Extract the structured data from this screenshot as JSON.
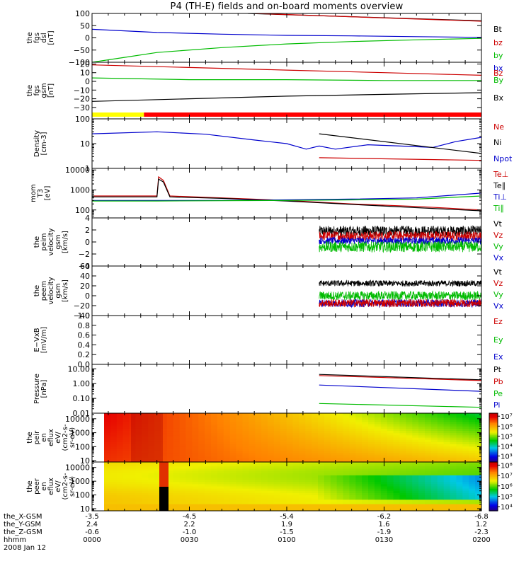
{
  "title": "P4 (TH-E) fields and on-board moments overview",
  "chart_data": {
    "type": "line",
    "time_axis": {
      "rows": [
        {
          "label": "the_X-GSM",
          "values": [
            "-3.5",
            "-4.5",
            "-5.4",
            "-6.2",
            "-6.8"
          ]
        },
        {
          "label": "the_Y-GSM",
          "values": [
            "2.4",
            "2.2",
            "1.9",
            "1.6",
            "1.2"
          ]
        },
        {
          "label": "the_Z-GSM",
          "values": [
            "-0.6",
            "-1.0",
            "-1.5",
            "-1.9",
            "-2.3"
          ]
        },
        {
          "label": "hhmm",
          "values": [
            "0000",
            "0030",
            "0100",
            "0130",
            "0200"
          ]
        }
      ],
      "date": "2008 Jan 12",
      "range_min": [
        0,
        120
      ]
    },
    "panels": [
      {
        "id": "fgs_dsl",
        "ylabel": [
          "the",
          "fgs",
          "dsl",
          "[nT]"
        ],
        "scale": "linear",
        "ylim": [
          -100,
          100
        ],
        "yticks": [
          "100",
          "50",
          "0",
          "−50",
          "−100"
        ],
        "ytick_values": [
          100,
          50,
          0,
          -50,
          -100
        ],
        "legend": [
          {
            "name": "Bt",
            "color": "#000000"
          },
          {
            "name": "bz",
            "color": "#cc0000"
          },
          {
            "name": "by",
            "color": "#00bb00"
          },
          {
            "name": "bx",
            "color": "#0000cc"
          }
        ],
        "series": [
          {
            "name": "Bt",
            "color": "#000000",
            "t": [
              48,
              120
            ],
            "y": [
              100,
              70
            ]
          },
          {
            "name": "bz",
            "color": "#cc0000",
            "t": [
              50,
              120
            ],
            "y": [
              100,
              68
            ]
          },
          {
            "name": "by",
            "color": "#00bb00",
            "t": [
              0,
              10,
              20,
              40,
              60,
              80,
              100,
              120
            ],
            "y": [
              -100,
              -80,
              -60,
              -40,
              -25,
              -15,
              -8,
              -2
            ]
          },
          {
            "name": "bx",
            "color": "#0000cc",
            "t": [
              0,
              20,
              40,
              60,
              80,
              100,
              120
            ],
            "y": [
              35,
              22,
              15,
              10,
              8,
              5,
              2
            ]
          }
        ]
      },
      {
        "id": "fgs_gsm",
        "ylabel": [
          "the",
          "fgs",
          "gsm",
          "[nT]"
        ],
        "scale": "linear",
        "ylim": [
          -35,
          22
        ],
        "yticks": [
          "20",
          "10",
          "0",
          "−10",
          "−20",
          "−30"
        ],
        "ytick_values": [
          20,
          10,
          0,
          -10,
          -20,
          -30
        ],
        "legend": [
          {
            "name": "Bz",
            "color": "#cc0000"
          },
          {
            "name": "By",
            "color": "#00bb00"
          },
          {
            "name": "Bx",
            "color": "#000000"
          }
        ],
        "series": [
          {
            "name": "Bz",
            "color": "#cc0000",
            "t": [
              0,
              30,
              60,
              90,
              120
            ],
            "y": [
              19,
              16,
              13,
              10,
              7
            ]
          },
          {
            "name": "By",
            "color": "#00bb00",
            "t": [
              0,
              30,
              60,
              90,
              120
            ],
            "y": [
              4,
              2,
              2,
              1,
              1
            ]
          },
          {
            "name": "Bx",
            "color": "#000000",
            "t": [
              0,
              30,
              60,
              90,
              120
            ],
            "y": [
              -23,
              -20,
              -17,
              -15,
              -13
            ]
          }
        ],
        "status_bar": [
          {
            "t_end": 16,
            "color": "#ffff00"
          },
          {
            "t_end": 120,
            "color": "#ff0000"
          }
        ]
      },
      {
        "id": "density",
        "ylabel": [
          "Density",
          "[cm-3]"
        ],
        "scale": "log",
        "ylim": [
          1,
          100
        ],
        "yticks": [
          "100",
          "10",
          "1"
        ],
        "ytick_values": [
          100,
          10,
          1
        ],
        "legend": [
          {
            "name": "Ne",
            "color": "#cc0000"
          },
          {
            "name": "Ni",
            "color": "#000000"
          },
          {
            "name": "Npot",
            "color": "#0000cc"
          }
        ],
        "series": [
          {
            "name": "Npot",
            "color": "#0000cc",
            "t": [
              0,
              20,
              35,
              50,
              60,
              66,
              70,
              75,
              85,
              95,
              105,
              112,
              120
            ],
            "y": [
              25,
              30,
              24,
              14,
              10,
              6,
              8,
              6,
              9,
              8,
              7,
              12,
              18
            ]
          },
          {
            "name": "Ni",
            "color": "#000000",
            "t": [
              70,
              120
            ],
            "y": [
              25,
              4
            ]
          },
          {
            "name": "Ne",
            "color": "#cc0000",
            "t": [
              70,
              120
            ],
            "y": [
              2.7,
              2.1
            ]
          }
        ]
      },
      {
        "id": "mom_temp",
        "ylabel": [
          "mom",
          "T3",
          "[eV]"
        ],
        "scale": "log",
        "ylim": [
          40,
          12000
        ],
        "yticks": [
          "10000",
          "1000",
          "100"
        ],
        "ytick_values": [
          10000,
          1000,
          100
        ],
        "legend": [
          {
            "name": "Te⊥",
            "color": "#cc0000"
          },
          {
            "name": "Te∥",
            "color": "#000000"
          },
          {
            "name": "Ti⊥",
            "color": "#0000cc"
          },
          {
            "name": "Ti∥",
            "color": "#00bb00"
          }
        ],
        "series": [
          {
            "name": "Te⊥",
            "color": "#cc0000",
            "t": [
              0,
              20,
              20.5,
              22,
              24,
              40,
              60,
              80,
              100,
              120
            ],
            "y": [
              500,
              500,
              4500,
              3000,
              500,
              400,
              300,
              200,
              150,
              100
            ]
          },
          {
            "name": "Te∥",
            "color": "#000000",
            "t": [
              0,
              20,
              20.5,
              22,
              24,
              40,
              60,
              80,
              100,
              120
            ],
            "y": [
              450,
              450,
              3500,
              2500,
              450,
              380,
              280,
              190,
              130,
              90
            ]
          },
          {
            "name": "Ti⊥",
            "color": "#0000cc",
            "t": [
              0,
              20,
              40,
              60,
              80,
              100,
              120
            ],
            "y": [
              300,
              300,
              300,
              320,
              350,
              400,
              700
            ]
          },
          {
            "name": "Ti∥",
            "color": "#00bb00",
            "t": [
              0,
              20,
              40,
              60,
              80,
              100,
              120
            ],
            "y": [
              280,
              280,
              290,
              300,
              320,
              350,
              500
            ]
          }
        ]
      },
      {
        "id": "peim_vel",
        "ylabel": [
          "the",
          "peim",
          "velocity",
          "gsm",
          "[km/s]"
        ],
        "scale": "linear",
        "ylim": [
          -4,
          4
        ],
        "yticks": [
          "4",
          "2",
          "0",
          "−2",
          "−4"
        ],
        "ytick_values": [
          4,
          2,
          0,
          -2,
          -4
        ],
        "legend": [
          {
            "name": "Vt",
            "color": "#000000"
          },
          {
            "name": "Vz",
            "color": "#cc0000"
          },
          {
            "name": "Vy",
            "color": "#00bb00"
          },
          {
            "name": "Vx",
            "color": "#0000cc"
          }
        ],
        "noise": [
          {
            "name": "Vt",
            "color": "#000000",
            "t_start": 70,
            "mean": 1.8,
            "amp": 0.9
          },
          {
            "name": "Vz",
            "color": "#cc0000",
            "t_start": 70,
            "mean": 1.0,
            "amp": 0.8
          },
          {
            "name": "Vx",
            "color": "#0000cc",
            "t_start": 70,
            "mean": 0.2,
            "amp": 0.6
          },
          {
            "name": "Vy",
            "color": "#00bb00",
            "t_start": 70,
            "mean": -0.8,
            "amp": 0.9
          }
        ]
      },
      {
        "id": "peem_vel",
        "ylabel": [
          "the",
          "peem",
          "velocity",
          "gsm",
          "[km/s]"
        ],
        "scale": "linear",
        "ylim": [
          -40,
          60
        ],
        "yticks": [
          "60",
          "40",
          "20",
          "0",
          "−20",
          "−40"
        ],
        "ytick_values": [
          60,
          40,
          20,
          0,
          -20,
          -40
        ],
        "legend": [
          {
            "name": "Vt",
            "color": "#000000"
          },
          {
            "name": "Vz",
            "color": "#cc0000"
          },
          {
            "name": "Vy",
            "color": "#00bb00"
          },
          {
            "name": "Vx",
            "color": "#0000cc"
          }
        ],
        "noise": [
          {
            "name": "Vt",
            "color": "#000000",
            "t_start": 70,
            "mean": 25,
            "amp": 6
          },
          {
            "name": "Vy",
            "color": "#00bb00",
            "t_start": 70,
            "mean": 0,
            "amp": 9
          },
          {
            "name": "Vx",
            "color": "#0000cc",
            "t_start": 70,
            "mean": -15,
            "amp": 8
          },
          {
            "name": "Vz",
            "color": "#cc0000",
            "t_start": 70,
            "mean": -15,
            "amp": 8
          }
        ]
      },
      {
        "id": "e_vxb",
        "ylabel": [
          "E−VxB",
          "[mV/m]"
        ],
        "scale": "linear",
        "ylim": [
          0,
          1
        ],
        "yticks": [
          "1.0",
          "0.8",
          "0.6",
          "0.4",
          "0.2",
          "0.0"
        ],
        "ytick_values": [
          1,
          0.8,
          0.6,
          0.4,
          0.2,
          0
        ],
        "legend": [
          {
            "name": "Ez",
            "color": "#cc0000"
          },
          {
            "name": "Ey",
            "color": "#00bb00"
          },
          {
            "name": "Ex",
            "color": "#0000cc"
          }
        ],
        "series": []
      },
      {
        "id": "pressure",
        "ylabel": [
          "Pressure",
          "[nPa]"
        ],
        "scale": "log",
        "ylim": [
          0.01,
          20
        ],
        "yticks": [
          "10.00",
          "1.00",
          "0.10",
          "0.01"
        ],
        "ytick_values": [
          10,
          1,
          0.1,
          0.01
        ],
        "legend": [
          {
            "name": "Pt",
            "color": "#000000"
          },
          {
            "name": "Pb",
            "color": "#cc0000"
          },
          {
            "name": "Pe",
            "color": "#00bb00"
          },
          {
            "name": "Pi",
            "color": "#0000cc"
          }
        ],
        "series": [
          {
            "name": "Pt",
            "color": "#000000",
            "t": [
              70,
              120
            ],
            "y": [
              4.2,
              1.8
            ]
          },
          {
            "name": "Pb",
            "color": "#cc0000",
            "t": [
              70,
              120
            ],
            "y": [
              3.5,
              1.6
            ]
          },
          {
            "name": "Pi",
            "color": "#0000cc",
            "t": [
              70,
              120
            ],
            "y": [
              0.8,
              0.3
            ]
          },
          {
            "name": "Pe",
            "color": "#00bb00",
            "t": [
              70,
              120
            ],
            "y": [
              0.045,
              0.025
            ]
          }
        ]
      },
      {
        "id": "peir_spec",
        "type": "heatmap",
        "ylabel": [
          "the",
          "peir",
          "en",
          "eflux",
          "eV/",
          "(cm2-s-",
          "sr-eV)"
        ],
        "scale": "log",
        "ylim": [
          8,
          25000
        ],
        "yticks": [
          "10000",
          "1000",
          "100",
          "10"
        ],
        "ytick_values": [
          10000,
          1000,
          100,
          10
        ],
        "colorbar": {
          "labels": [
            "10⁷",
            "10⁶",
            "10⁵",
            "10⁴",
            "10³"
          ],
          "label_values": [
            7,
            6,
            5,
            4,
            3
          ],
          "range": [
            2.4,
            7.3
          ]
        }
      },
      {
        "id": "peer_spec",
        "type": "heatmap",
        "ylabel": [
          "the",
          "peer",
          "en",
          "eflux",
          "eV/",
          "(cm2-s-",
          "sr-eV)"
        ],
        "scale": "log",
        "ylim": [
          7,
          25000
        ],
        "yticks": [
          "10000",
          "1000",
          "100",
          "10"
        ],
        "ytick_values": [
          10000,
          1000,
          100,
          10
        ],
        "colorbar": {
          "labels": [
            "10⁸",
            "10⁷",
            "10⁶",
            "10⁵",
            "10⁴"
          ],
          "label_values": [
            8,
            7,
            6,
            5,
            4
          ],
          "range": [
            3.6,
            8.3
          ]
        }
      }
    ]
  }
}
